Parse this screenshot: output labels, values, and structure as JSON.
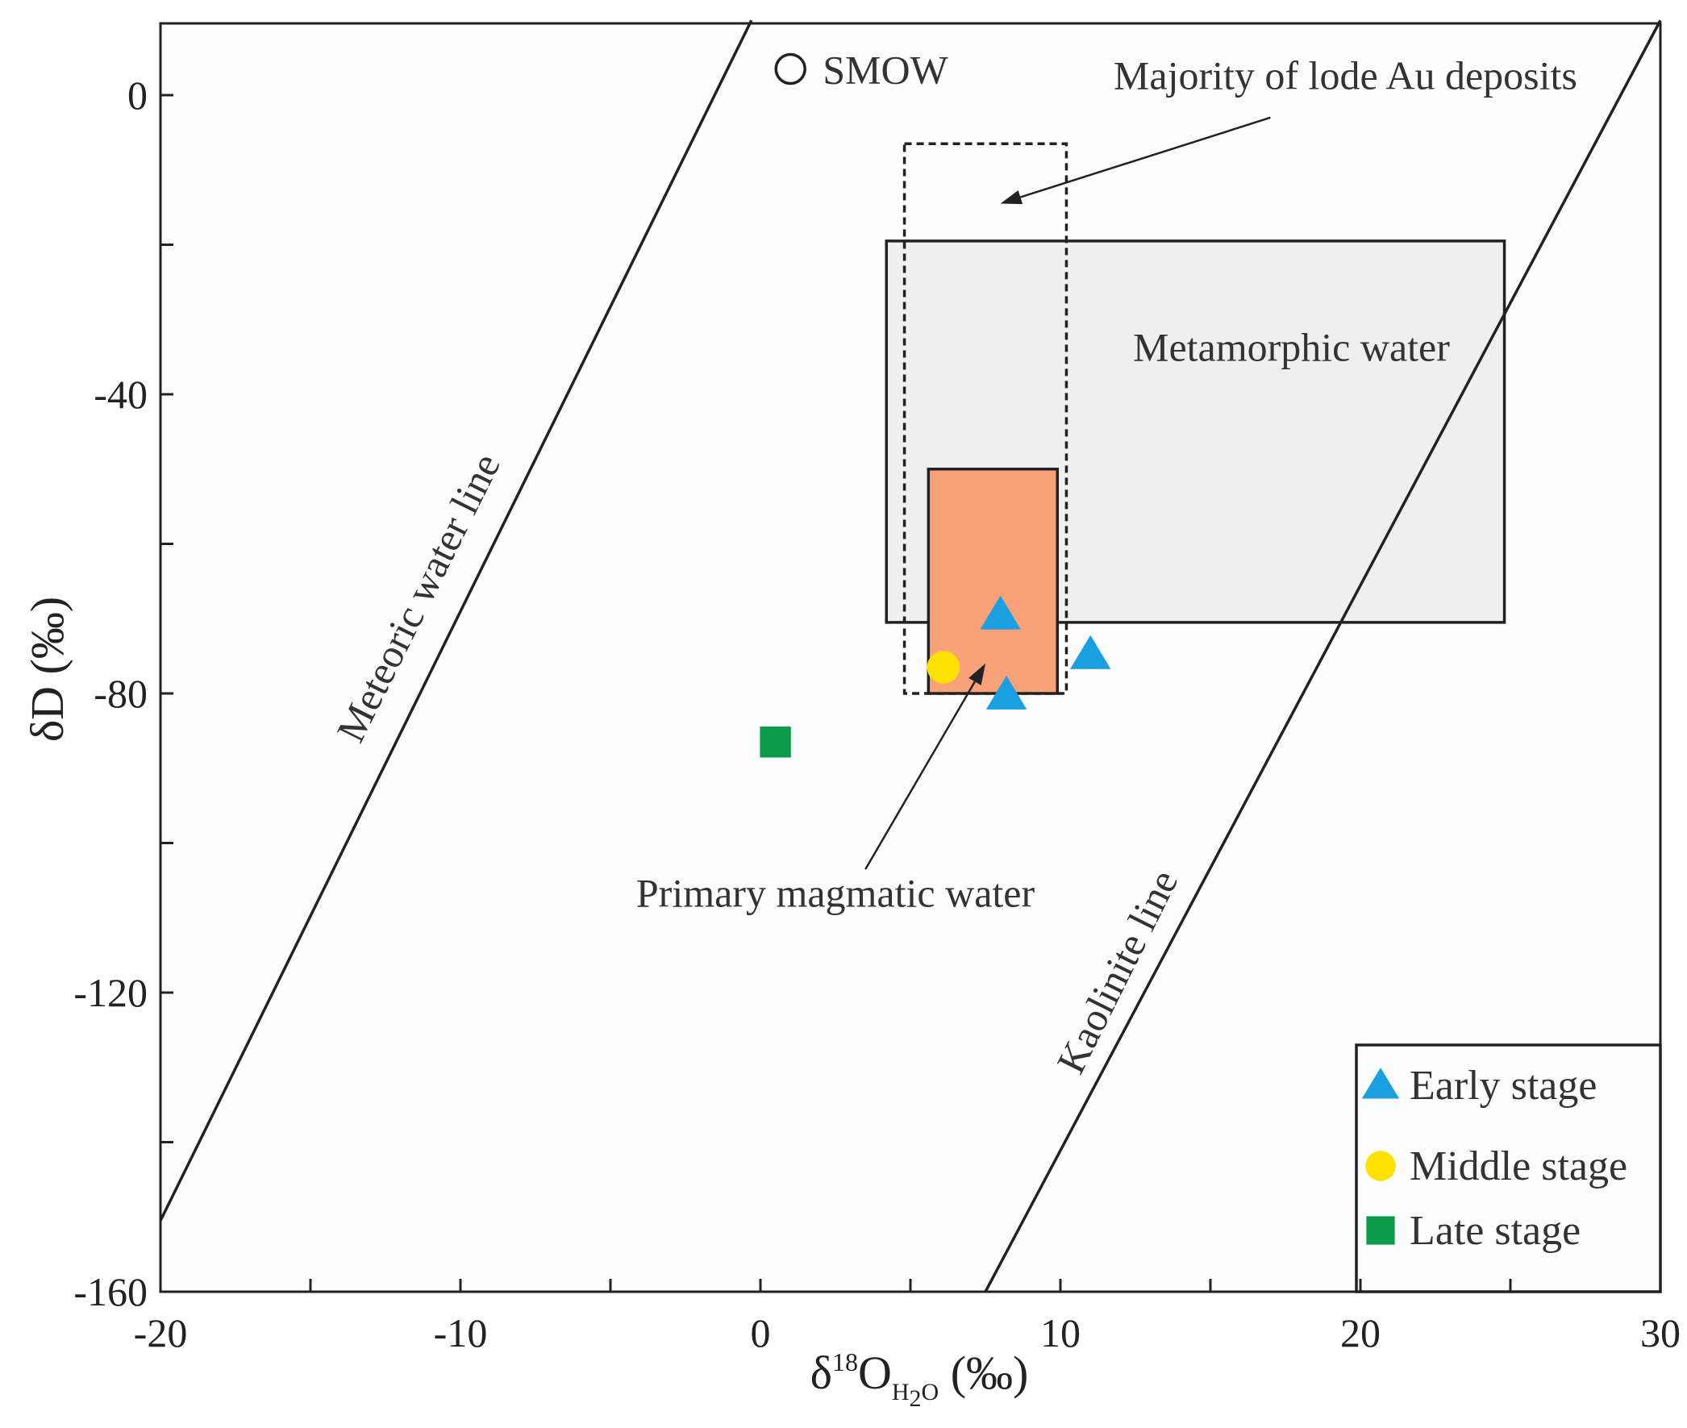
{
  "chart_data": {
    "type": "scatter",
    "title": "",
    "xlabel": {
      "prefix": "δ",
      "sup": "18",
      "main": "O",
      "sub": "H",
      "sub2": "2",
      "sub3": "O",
      "suffix": " (‰)"
    },
    "ylabel": "δD (‰)",
    "xlim": [
      -20,
      30
    ],
    "ylim": [
      -160,
      10
    ],
    "x_ticks": [
      -20,
      -10,
      0,
      10,
      20,
      30
    ],
    "y_ticks": [
      0,
      -40,
      -80,
      -120,
      -160
    ],
    "x_tick_labels": [
      "-20",
      "-10",
      "0",
      "10",
      "20",
      "30"
    ],
    "y_tick_labels": [
      "0",
      "-40",
      "-80",
      "-120",
      "-160"
    ],
    "x_minor_ticks": [
      -15,
      -5,
      5,
      15,
      25
    ],
    "y_minor_ticks": [
      -20,
      -60,
      -100,
      -140
    ],
    "series": [
      {
        "name": "Early stage",
        "marker": "triangle",
        "color": "#1a9fe0",
        "points": [
          [
            8.0,
            -69.5
          ],
          [
            8.2,
            -80.2
          ],
          [
            11.0,
            -74.8
          ]
        ]
      },
      {
        "name": "Middle stage",
        "marker": "circle",
        "color": "#ffe100",
        "points": [
          [
            6.1,
            -76.5
          ]
        ]
      },
      {
        "name": "Late stage",
        "marker": "square",
        "color": "#0a9a4a",
        "points": [
          [
            0.5,
            -86.5
          ]
        ]
      }
    ],
    "smow": {
      "label": "SMOW",
      "x": 1.0,
      "y": 3.5
    },
    "reference_lines": [
      {
        "label": "Meteoric water line",
        "points": [
          [
            -20,
            -150.5
          ],
          [
            -0.3,
            10
          ]
        ]
      },
      {
        "label": "Kaolinite line",
        "points": [
          [
            7.5,
            -160
          ],
          [
            30,
            10
          ]
        ]
      }
    ],
    "regions": [
      {
        "label": "Metamorphic water",
        "x": [
          4.2,
          24.8
        ],
        "y": [
          -70.5,
          -19.5
        ],
        "fill": "#efefef",
        "stroke": "#222",
        "style": "solid"
      },
      {
        "label": "Majority of lode Au deposits",
        "x": [
          4.8,
          10.2
        ],
        "y": [
          -80,
          -6.5
        ],
        "fill": "none",
        "stroke": "#222",
        "style": "dashed"
      },
      {
        "label": "Primary magmatic water",
        "x": [
          5.6,
          9.9
        ],
        "y": [
          -80,
          -50
        ],
        "fill": "#f9a27a",
        "stroke": "#222",
        "style": "solid"
      }
    ],
    "annotations": [
      {
        "text": "Majority of lode Au deposits",
        "x": 19.5,
        "y": 0.8,
        "arrow_to": [
          8.0,
          -14.5
        ],
        "arrow_from": [
          17.0,
          -3.0
        ]
      },
      {
        "text": "Metamorphic water",
        "x": 17.7,
        "y": -35.5
      },
      {
        "text": "Primary magmatic water",
        "x": 2.5,
        "y": -108.5,
        "arrow_to": [
          7.5,
          -76.0
        ],
        "arrow_from": [
          3.5,
          -103.5
        ]
      }
    ],
    "legend": {
      "position": "bottom-right",
      "entries": [
        {
          "label": "Early stage",
          "marker": "triangle",
          "color": "#1a9fe0"
        },
        {
          "label": "Middle stage",
          "marker": "circle",
          "color": "#ffe100"
        },
        {
          "label": "Late stage",
          "marker": "square",
          "color": "#0a9a4a"
        }
      ]
    }
  }
}
